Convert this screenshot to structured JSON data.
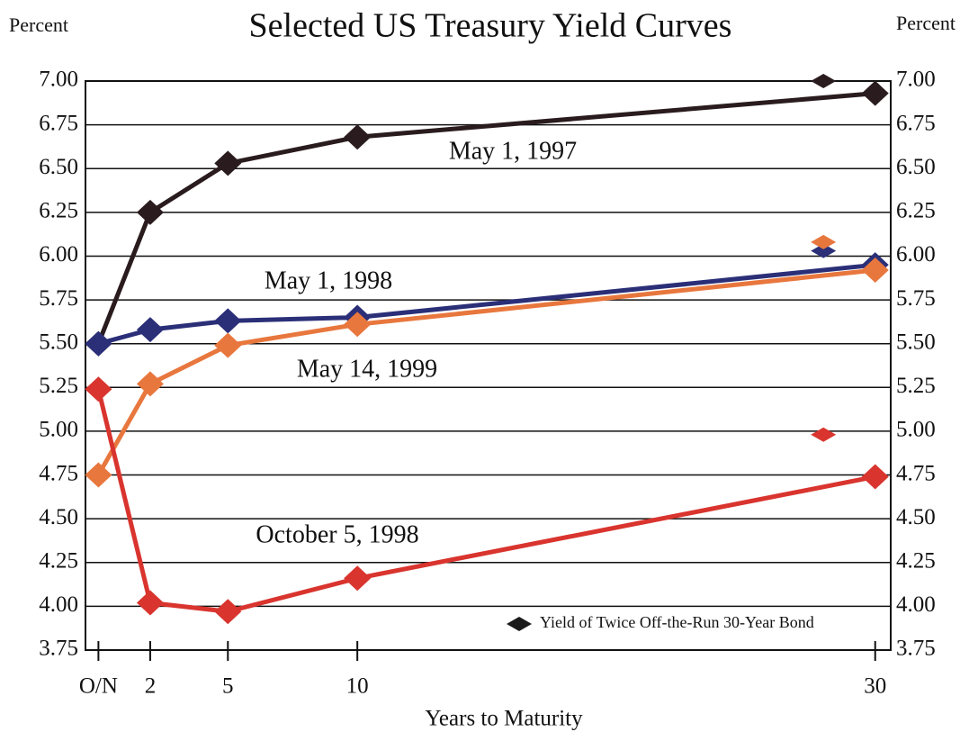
{
  "chart_data": {
    "type": "line",
    "title": "Selected US Treasury Yield Curves",
    "ylabel": "Percent",
    "y2label": "Percent",
    "xlabel": "Years to Maturity",
    "x": [
      0,
      2,
      5,
      10,
      30
    ],
    "xlim": [
      -0.5,
      30.6
    ],
    "xticks": [
      {
        "value": 0,
        "label": "O/N"
      },
      2,
      5,
      10,
      30
    ],
    "ylim": [
      3.75,
      7.0
    ],
    "yticks": [
      {
        "value": 3.75,
        "label": "3.75"
      },
      {
        "value": 4.0,
        "label": "4.00"
      },
      {
        "value": 4.25,
        "label": "4.25"
      },
      {
        "value": 4.5,
        "label": "4.50"
      },
      {
        "value": 4.75,
        "label": "4.75"
      },
      {
        "value": 5.0,
        "label": "5.00"
      },
      {
        "value": 5.25,
        "label": "5.25"
      },
      {
        "value": 5.5,
        "label": "5.50"
      },
      {
        "value": 5.75,
        "label": "5.75"
      },
      {
        "value": 6.0,
        "label": "6.00"
      },
      {
        "value": 6.25,
        "label": "6.25"
      },
      {
        "value": 6.5,
        "label": "6.50"
      },
      {
        "value": 6.75,
        "label": "6.75"
      },
      {
        "value": 7.0,
        "label": "7.00"
      }
    ],
    "y2lim": [
      3.75,
      7.0
    ],
    "y2ticks": [
      {
        "value": 3.75,
        "label": "3.75"
      },
      {
        "value": 4.0,
        "label": "4.00"
      },
      {
        "value": 4.25,
        "label": "4.25"
      },
      {
        "value": 4.5,
        "label": "4.50"
      },
      {
        "value": 4.75,
        "label": "4.75"
      },
      {
        "value": 5.0,
        "label": "5.00"
      },
      {
        "value": 5.25,
        "label": "5.25"
      },
      {
        "value": 5.5,
        "label": "5.50"
      },
      {
        "value": 5.75,
        "label": "5.75"
      },
      {
        "value": 6.0,
        "label": "6.00"
      },
      {
        "value": 6.25,
        "label": "6.25"
      },
      {
        "value": 6.5,
        "label": "6.50"
      },
      {
        "value": 6.75,
        "label": "6.75"
      },
      {
        "value": 7.0,
        "label": "7.00"
      }
    ],
    "grid": true,
    "series": [
      {
        "name": "May 1, 1997",
        "color": "#2a1c1e",
        "label_color": "#5a1f4e",
        "values": [
          5.5,
          6.25,
          6.53,
          6.68,
          6.93
        ]
      },
      {
        "name": "May 1, 1998",
        "color": "#2b2f78",
        "label_color": "#2b2f78",
        "values": [
          5.5,
          5.58,
          5.63,
          5.65,
          5.95
        ]
      },
      {
        "name": "May 14, 1999",
        "color": "#e8773e",
        "label_color": "#e8773e",
        "values": [
          4.75,
          5.27,
          5.49,
          5.61,
          5.92
        ]
      },
      {
        "name": "October 5, 1998",
        "color": "#d9342e",
        "label_color": "#d9342e",
        "values": [
          5.24,
          4.02,
          3.97,
          4.16,
          4.74
        ]
      }
    ],
    "off_the_run": {
      "name": "Yield of Twice Off-the-Run 30-Year Bond",
      "color": "#1a1a1a",
      "x": 28,
      "values": [
        7.0,
        6.03,
        6.08,
        4.98
      ]
    }
  }
}
